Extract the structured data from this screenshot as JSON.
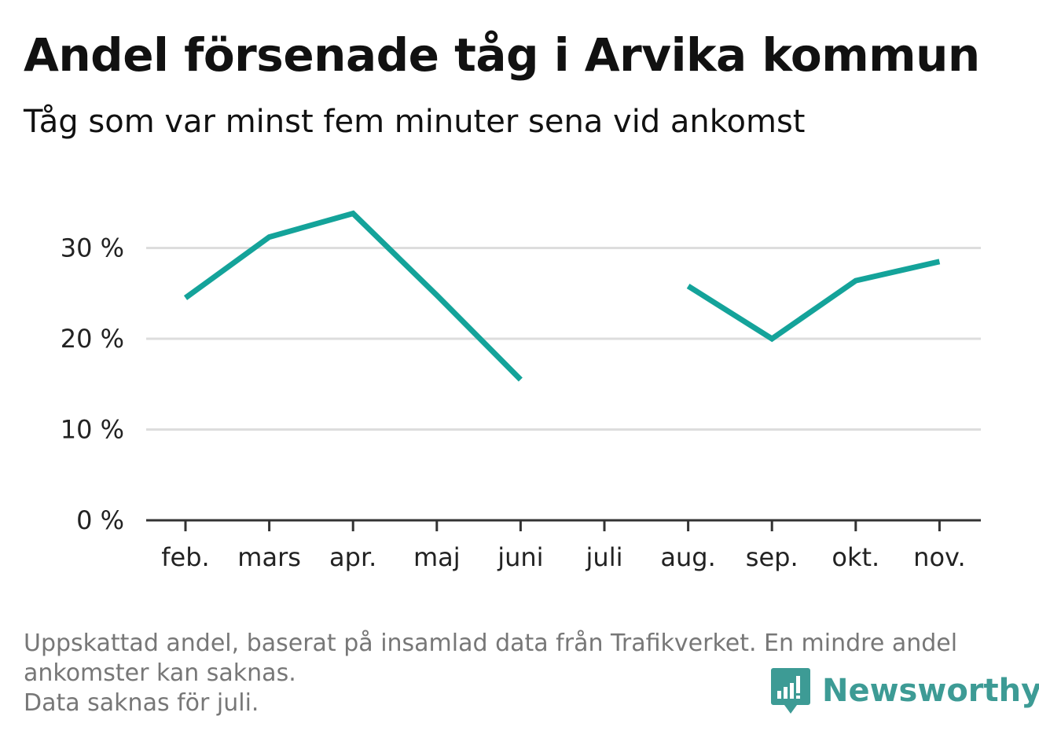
{
  "header": {
    "title": "Andel försenade tåg i Arvika kommun",
    "subtitle": "Tåg som var minst fem minuter sena vid ankomst"
  },
  "chart_data": {
    "type": "line",
    "title": "Andel försenade tåg i Arvika kommun",
    "subtitle": "Tåg som var minst fem minuter sena vid ankomst",
    "xlabel": "",
    "ylabel": "",
    "categories": [
      "feb.",
      "mars",
      "apr.",
      "maj",
      "juni",
      "juli",
      "aug.",
      "sep.",
      "okt.",
      "nov."
    ],
    "yticks": [
      0,
      10,
      20,
      30
    ],
    "ytick_labels": [
      "0 %",
      "10 %",
      "20 %",
      "30 %"
    ],
    "ylim": [
      0,
      36
    ],
    "grid": true,
    "series": [
      {
        "values": [
          24.5,
          31.2,
          33.8,
          24.8,
          15.5,
          null,
          25.8,
          20.0,
          26.4,
          28.5
        ],
        "color": "#14a39a"
      }
    ]
  },
  "footer": {
    "note_line1": "Uppskattad andel, baserat på insamlad data från Trafikverket. En mindre andel",
    "note_line2": "ankomster kan saknas.",
    "note_line3": "Data saknas för juli.",
    "logo_text": "Newsworthy",
    "logo_color": "#3d9b95"
  }
}
